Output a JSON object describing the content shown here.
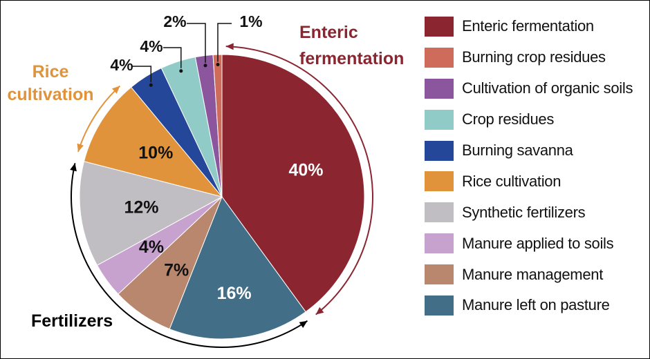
{
  "chart_data": {
    "type": "pie",
    "categories": [
      "Enteric fermentation",
      "Manure left on pasture",
      "Manure management",
      "Manure applied to soils",
      "Synthetic fertilizers",
      "Rice cultivation",
      "Burning savanna",
      "Crop residues",
      "Cultivation of organic soils",
      "Burning crop residues"
    ],
    "values": [
      40,
      16,
      7,
      4,
      12,
      10,
      4,
      4,
      2,
      1
    ],
    "value_labels": [
      "40%",
      "16%",
      "7%",
      "4%",
      "12%",
      "10%",
      "4%",
      "4%",
      "2%",
      "1%"
    ],
    "colors": [
      "#8b2530",
      "#436e87",
      "#b8876d",
      "#c8a2cf",
      "#c1bec3",
      "#e0933a",
      "#24479a",
      "#90cbc8",
      "#8b569d",
      "#cf6b5a"
    ],
    "label_colors": [
      "#ffffff",
      "#ffffff",
      "#111111",
      "#111111",
      "#111111",
      "#111111",
      "#111111",
      "#111111",
      "#111111",
      "#111111"
    ],
    "start_angle_deg": 0,
    "direction": "clockwise",
    "legend": {
      "position": "right",
      "entries": [
        "Enteric fermentation",
        "Burning crop residues",
        "Cultivation of organic soils",
        "Crop residues",
        "Burning savanna",
        "Rice cultivation",
        "Synthetic fertilizers",
        "Manure applied to soils",
        "Manure management",
        "Manure left on pasture"
      ],
      "colors": [
        "#8b2530",
        "#cf6b5a",
        "#8b569d",
        "#90cbc8",
        "#24479a",
        "#e0933a",
        "#c1bec3",
        "#c8a2cf",
        "#b8876d",
        "#436e87"
      ]
    },
    "annotations": [
      {
        "text": [
          "Enteric",
          "fermentation"
        ],
        "color": "#8b2530"
      },
      {
        "text": [
          "Rice",
          "cultivation"
        ],
        "color": "#e0933a"
      },
      {
        "text": [
          "Fertilizers"
        ],
        "color": "#000000"
      }
    ]
  }
}
